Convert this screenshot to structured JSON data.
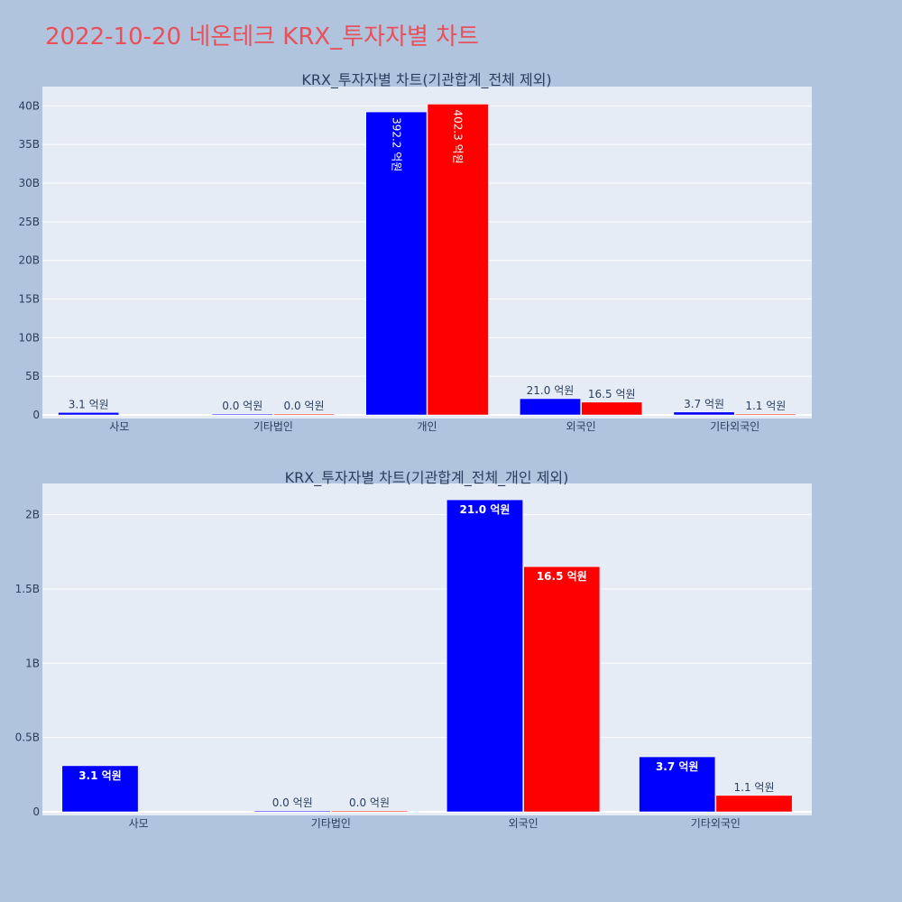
{
  "title": "2022-10-20 네온테크 KRX_투자자별 차트",
  "colors": {
    "series_a": "#0000ff",
    "series_b": "#ff0000",
    "plot_bg": "#e5ecf6",
    "paper_bg": "#b0c4de",
    "title": "#e8505b"
  },
  "chart_data": [
    {
      "type": "bar",
      "title": "KRX_투자자별 차트(기관합계_전체 제외)",
      "categories": [
        "사모",
        "기타법인",
        "개인",
        "외국인",
        "기타외국인"
      ],
      "y_ticks": [
        {
          "value": 0,
          "label": "0"
        },
        {
          "value": 5000000000,
          "label": "5B"
        },
        {
          "value": 10000000000,
          "label": "10B"
        },
        {
          "value": 15000000000,
          "label": "15B"
        },
        {
          "value": 20000000000,
          "label": "20B"
        },
        {
          "value": 25000000000,
          "label": "25B"
        },
        {
          "value": 30000000000,
          "label": "30B"
        },
        {
          "value": 35000000000,
          "label": "35B"
        },
        {
          "value": 40000000000,
          "label": "40B"
        }
      ],
      "ylim": [
        0,
        42500000000
      ],
      "grid": true,
      "series": [
        {
          "values": [
            310000000,
            0,
            39220000000,
            2100000000,
            370000000
          ],
          "labels": [
            "3.1 억원",
            "0.0 억원",
            "392.2 억원",
            "21.0 억원",
            "3.7 억원"
          ],
          "color": "#0000ff"
        },
        {
          "values": [
            null,
            0,
            40230000000,
            1650000000,
            110000000
          ],
          "labels": [
            null,
            "0.0 억원",
            "402.3 억원",
            "16.5 억원",
            "1.1 억원"
          ],
          "color": "#ff0000"
        }
      ]
    },
    {
      "type": "bar",
      "title": "KRX_투자자별 차트(기관합계_전체_개인 제외)",
      "categories": [
        "사모",
        "기타법인",
        "외국인",
        "기타외국인"
      ],
      "y_ticks": [
        {
          "value": 0,
          "label": "0"
        },
        {
          "value": 500000000,
          "label": "0.5B"
        },
        {
          "value": 1000000000,
          "label": "1B"
        },
        {
          "value": 1500000000,
          "label": "1.5B"
        },
        {
          "value": 2000000000,
          "label": "2B"
        }
      ],
      "ylim": [
        0,
        2210000000
      ],
      "grid": true,
      "series": [
        {
          "values": [
            310000000,
            0,
            2100000000,
            370000000
          ],
          "labels": [
            "3.1 억원",
            "0.0 억원",
            "21.0 억원",
            "3.7 억원"
          ],
          "color": "#0000ff"
        },
        {
          "values": [
            null,
            0,
            1650000000,
            110000000
          ],
          "labels": [
            null,
            "0.0 억원",
            "16.5 억원",
            "1.1 억원"
          ],
          "color": "#ff0000"
        }
      ]
    }
  ]
}
